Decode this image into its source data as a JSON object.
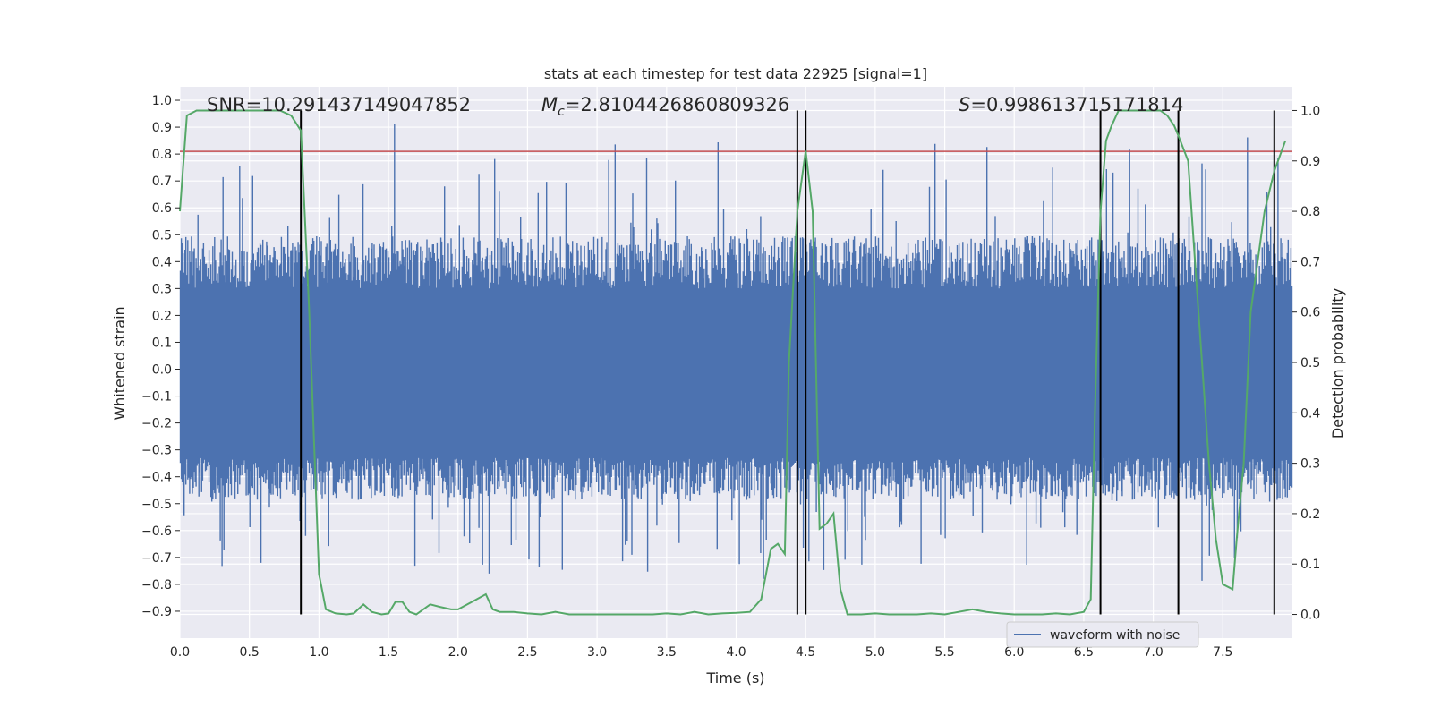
{
  "chart_data": {
    "type": "line",
    "title": "stats at each timestep for test data 22925 [signal=1]",
    "xlabel": "Time (s)",
    "ylabel": "Whitened strain",
    "y2label": "Detection probability",
    "xlim": [
      0.0,
      8.0
    ],
    "ylim": [
      -1.0,
      1.05
    ],
    "y2lim": [
      -0.047,
      1.047
    ],
    "grid": true,
    "x_ticks": [
      "0.0",
      "0.5",
      "1.0",
      "1.5",
      "2.0",
      "2.5",
      "3.0",
      "3.5",
      "4.0",
      "4.5",
      "5.0",
      "5.5",
      "6.0",
      "6.5",
      "7.0",
      "7.5"
    ],
    "y_ticks": [
      "1.0",
      "0.9",
      "0.8",
      "0.7",
      "0.6",
      "0.5",
      "0.4",
      "0.3",
      "0.2",
      "0.1",
      "0.0",
      "−0.1",
      "−0.2",
      "−0.3",
      "−0.4",
      "−0.5",
      "−0.6",
      "−0.7",
      "−0.8",
      "−0.9"
    ],
    "y2_ticks": [
      "1.0",
      "0.9",
      "0.8",
      "0.7",
      "0.6",
      "0.5",
      "0.4",
      "0.3",
      "0.2",
      "0.1",
      "0.0"
    ],
    "annotations": {
      "snr": "SNR=10.291437149047852",
      "mc_symbol": "M",
      "mc_sub": "c",
      "mc_value": "=2.8104426860809326",
      "s_symbol": "S",
      "s_value": "=0.998613715171814"
    },
    "legend": {
      "label": "waveform with noise",
      "position": "lower-right"
    },
    "threshold": {
      "y": 0.81,
      "color": "#c44e52"
    },
    "vertical_lines_x": [
      0.87,
      4.44,
      4.5,
      6.62,
      7.18,
      7.87
    ],
    "detection_probability": {
      "color": "#55a868",
      "x": [
        0.0,
        0.05,
        0.12,
        0.2,
        0.3,
        0.45,
        0.6,
        0.72,
        0.8,
        0.87,
        0.93,
        1.0,
        1.05,
        1.12,
        1.2,
        1.25,
        1.32,
        1.38,
        1.45,
        1.5,
        1.55,
        1.6,
        1.65,
        1.7,
        1.75,
        1.8,
        1.87,
        1.95,
        2.0,
        2.1,
        2.2,
        2.25,
        2.3,
        2.4,
        2.5,
        2.6,
        2.7,
        2.8,
        2.9,
        3.0,
        3.1,
        3.2,
        3.3,
        3.4,
        3.5,
        3.6,
        3.7,
        3.8,
        3.9,
        4.0,
        4.1,
        4.18,
        4.25,
        4.3,
        4.35,
        4.38,
        4.44,
        4.5,
        4.55,
        4.6,
        4.65,
        4.7,
        4.75,
        4.8,
        4.9,
        5.0,
        5.1,
        5.2,
        5.3,
        5.4,
        5.5,
        5.6,
        5.7,
        5.8,
        5.9,
        6.0,
        6.1,
        6.2,
        6.3,
        6.4,
        6.5,
        6.55,
        6.58,
        6.62,
        6.66,
        6.7,
        6.75,
        6.8,
        6.9,
        7.0,
        7.05,
        7.1,
        7.15,
        7.18,
        7.25,
        7.3,
        7.35,
        7.4,
        7.45,
        7.5,
        7.57,
        7.6,
        7.65,
        7.7,
        7.8,
        7.87,
        7.95
      ],
      "y": [
        0.8,
        0.99,
        1.0,
        1.0,
        1.0,
        1.0,
        1.0,
        1.0,
        0.99,
        0.96,
        0.6,
        0.08,
        0.01,
        0.002,
        0.0,
        0.002,
        0.02,
        0.005,
        0.0,
        0.002,
        0.025,
        0.025,
        0.005,
        0.0,
        0.01,
        0.02,
        0.015,
        0.01,
        0.01,
        0.025,
        0.04,
        0.01,
        0.005,
        0.005,
        0.002,
        0.0,
        0.005,
        0.0,
        0.0,
        0.0,
        0.0,
        0.0,
        0.0,
        0.0,
        0.002,
        0.0,
        0.005,
        0.0,
        0.002,
        0.003,
        0.005,
        0.03,
        0.13,
        0.14,
        0.12,
        0.5,
        0.8,
        0.92,
        0.8,
        0.17,
        0.18,
        0.2,
        0.05,
        0.0,
        0.0,
        0.002,
        0.0,
        0.0,
        0.0,
        0.002,
        0.0,
        0.005,
        0.01,
        0.005,
        0.002,
        0.0,
        0.0,
        0.0,
        0.002,
        0.0,
        0.005,
        0.03,
        0.4,
        0.8,
        0.94,
        0.97,
        1.0,
        1.0,
        1.0,
        1.0,
        1.0,
        0.99,
        0.97,
        0.95,
        0.9,
        0.7,
        0.5,
        0.3,
        0.15,
        0.06,
        0.05,
        0.15,
        0.3,
        0.6,
        0.8,
        0.88,
        0.94
      ]
    },
    "waveform": {
      "color": "#4c72b0",
      "sample_count": 1200,
      "x_range": [
        0.0,
        8.0
      ],
      "band_y": [
        -0.33,
        0.3
      ],
      "typical_max": 0.45,
      "typical_min": -0.45,
      "peak_max": 1.0,
      "peak_min": -0.87
    }
  }
}
